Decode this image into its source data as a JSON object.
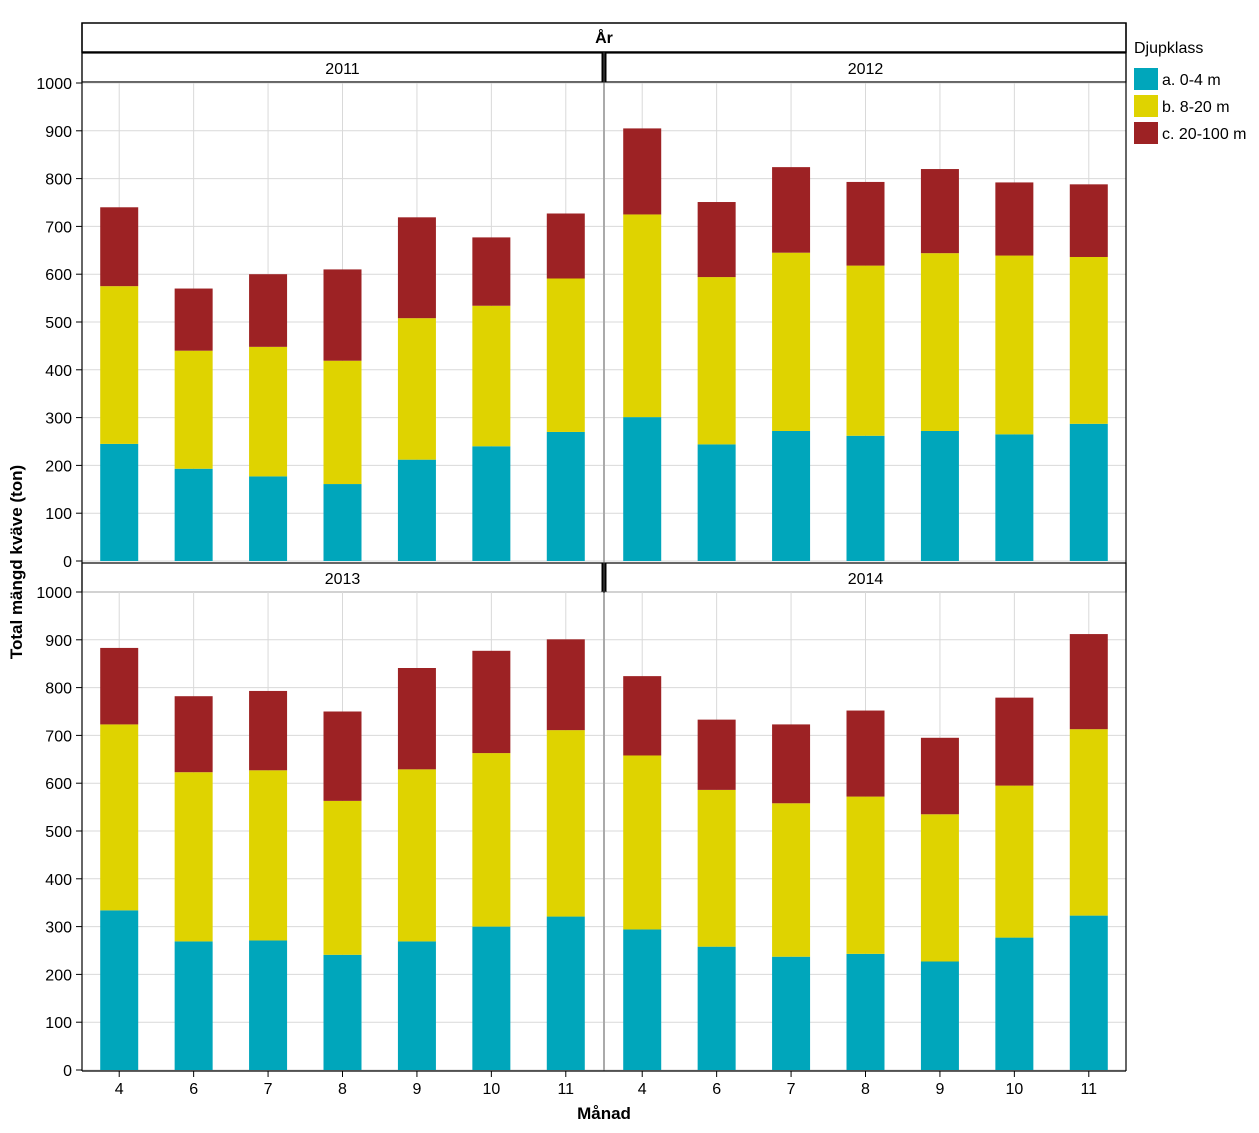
{
  "chart_data": {
    "type": "bar",
    "stacked": true,
    "facet_header": "År",
    "xlabel": "Månad",
    "ylabel": "Total mängd kväve (ton)",
    "ylim": [
      0,
      1000
    ],
    "yticks": [
      0,
      100,
      200,
      300,
      400,
      500,
      600,
      700,
      800,
      900,
      1000
    ],
    "categories": [
      "4",
      "6",
      "7",
      "8",
      "9",
      "10",
      "11"
    ],
    "grid": true,
    "legend": {
      "title": "Djupklass",
      "position": "top-right",
      "entries": [
        "a. 0-4 m",
        "b. 8-20 m",
        "c. 20-100 m"
      ]
    },
    "colors": [
      "#00a6bb",
      "#dfd300",
      "#9d2224"
    ],
    "panels": [
      {
        "title": "2011",
        "series": [
          {
            "name": "a. 0-4 m",
            "values": [
              245,
              193,
              177,
              161,
              212,
              240,
              270
            ]
          },
          {
            "name": "b. 8-20 m",
            "values": [
              330,
              247,
              271,
              258,
              296,
              294,
              321
            ]
          },
          {
            "name": "c. 20-100 m",
            "values": [
              165,
              130,
              152,
              191,
              211,
              143,
              136
            ]
          }
        ]
      },
      {
        "title": "2012",
        "series": [
          {
            "name": "a. 0-4 m",
            "values": [
              301,
              244,
              272,
              262,
              272,
              265,
              287
            ]
          },
          {
            "name": "b. 8-20 m",
            "values": [
              424,
              350,
              373,
              356,
              372,
              374,
              349
            ]
          },
          {
            "name": "c. 20-100 m",
            "values": [
              180,
              157,
              179,
              175,
              176,
              153,
              152
            ]
          }
        ]
      },
      {
        "title": "2013",
        "series": [
          {
            "name": "a. 0-4 m",
            "values": [
              334,
              269,
              271,
              241,
              269,
              300,
              321
            ]
          },
          {
            "name": "b. 8-20 m",
            "values": [
              389,
              354,
              356,
              322,
              360,
              363,
              390
            ]
          },
          {
            "name": "c. 20-100 m",
            "values": [
              160,
              159,
              166,
              187,
              212,
              214,
              190
            ]
          }
        ]
      },
      {
        "title": "2014",
        "series": [
          {
            "name": "a. 0-4 m",
            "values": [
              294,
              258,
              237,
              243,
              227,
              277,
              323
            ]
          },
          {
            "name": "b. 8-20 m",
            "values": [
              364,
              328,
              321,
              329,
              308,
              318,
              390
            ]
          },
          {
            "name": "c. 20-100 m",
            "values": [
              166,
              147,
              165,
              180,
              160,
              184,
              199
            ]
          }
        ]
      }
    ]
  }
}
